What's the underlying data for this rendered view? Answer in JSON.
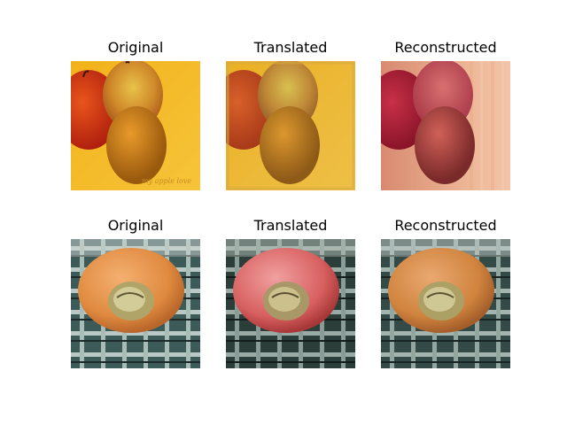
{
  "rows": [
    {
      "panels": [
        {
          "title": "Original",
          "image": "apples and orange on yellow background, watermark 'my apple love'"
        },
        {
          "title": "Translated",
          "image": "apples and orange, slightly desaturated tones"
        },
        {
          "title": "Reconstructed",
          "image": "apples and orange, red-pink tint with vertical artifacts"
        }
      ]
    },
    {
      "panels": [
        {
          "title": "Original",
          "image": "orange on plaid cloth with sticker"
        },
        {
          "title": "Translated",
          "image": "reddish-pink fruit on plaid cloth"
        },
        {
          "title": "Reconstructed",
          "image": "orange on plaid cloth, reconstructed"
        }
      ]
    }
  ]
}
